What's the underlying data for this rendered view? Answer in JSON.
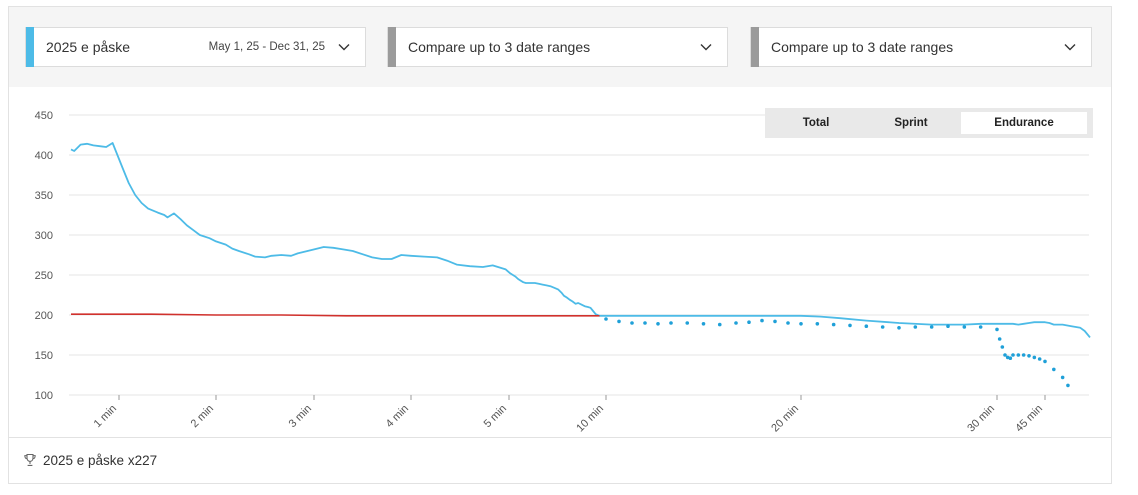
{
  "filters": [
    {
      "label": "2025 e påske",
      "range": "May 1, 25 - Dec 31, 25",
      "color": "#4dbbe7"
    },
    {
      "label": "Compare up to 3 date ranges",
      "range": "",
      "color": "#9b9b9b"
    },
    {
      "label": "Compare up to 3 date ranges",
      "range": "",
      "color": "#9b9b9b"
    }
  ],
  "toggle": {
    "options": [
      "Total",
      "Sprint",
      "Endurance"
    ],
    "selected": "Endurance"
  },
  "footer": {
    "text": "2025 e påske x227",
    "icon": "trophy-icon"
  },
  "chart_data": {
    "type": "line",
    "title": "",
    "xlabel": "",
    "ylabel": "",
    "ylim": [
      100,
      450
    ],
    "yticks": [
      100,
      150,
      200,
      250,
      300,
      350,
      400,
      450
    ],
    "x_scale": "piecewise-duration",
    "x_ticks": [
      {
        "label": "1 min",
        "seconds": 60
      },
      {
        "label": "2 min",
        "seconds": 120
      },
      {
        "label": "3 min",
        "seconds": 180
      },
      {
        "label": "4 min",
        "seconds": 240
      },
      {
        "label": "5 min",
        "seconds": 300
      },
      {
        "label": "10 min",
        "seconds": 600
      },
      {
        "label": "20 min",
        "seconds": 1200
      },
      {
        "label": "30 min",
        "seconds": 1800
      },
      {
        "label": "45 min",
        "seconds": 2700
      }
    ],
    "grid": true,
    "series": [
      {
        "color": "#4dbbe7",
        "style": "line",
        "points": [
          [
            30,
            407
          ],
          [
            32,
            405
          ],
          [
            36,
            413
          ],
          [
            40,
            414
          ],
          [
            44,
            412
          ],
          [
            48,
            411
          ],
          [
            52,
            410
          ],
          [
            56,
            415
          ],
          [
            58,
            405
          ],
          [
            62,
            385
          ],
          [
            66,
            365
          ],
          [
            70,
            350
          ],
          [
            74,
            340
          ],
          [
            78,
            333
          ],
          [
            84,
            328
          ],
          [
            88,
            325
          ],
          [
            90,
            322
          ],
          [
            94,
            327
          ],
          [
            98,
            320
          ],
          [
            102,
            312
          ],
          [
            106,
            306
          ],
          [
            110,
            300
          ],
          [
            116,
            296
          ],
          [
            120,
            292
          ],
          [
            126,
            288
          ],
          [
            130,
            283
          ],
          [
            134,
            280
          ],
          [
            140,
            276
          ],
          [
            144,
            273
          ],
          [
            150,
            272
          ],
          [
            154,
            274
          ],
          [
            160,
            275
          ],
          [
            166,
            274
          ],
          [
            170,
            277
          ],
          [
            176,
            280
          ],
          [
            182,
            283
          ],
          [
            186,
            285
          ],
          [
            192,
            284
          ],
          [
            198,
            282
          ],
          [
            204,
            280
          ],
          [
            210,
            276
          ],
          [
            216,
            272
          ],
          [
            222,
            270
          ],
          [
            228,
            270
          ],
          [
            234,
            275
          ],
          [
            240,
            274
          ],
          [
            248,
            273
          ],
          [
            256,
            272
          ],
          [
            262,
            268
          ],
          [
            268,
            263
          ],
          [
            276,
            261
          ],
          [
            284,
            260
          ],
          [
            290,
            262
          ],
          [
            298,
            257
          ],
          [
            304,
            252
          ],
          [
            312,
            250
          ],
          [
            320,
            248
          ],
          [
            328,
            245
          ],
          [
            336,
            243
          ],
          [
            344,
            241
          ],
          [
            352,
            240
          ],
          [
            360,
            240
          ],
          [
            370,
            240
          ],
          [
            380,
            240
          ],
          [
            392,
            239
          ],
          [
            404,
            238
          ],
          [
            416,
            237
          ],
          [
            428,
            236
          ],
          [
            440,
            234
          ],
          [
            452,
            232
          ],
          [
            462,
            228
          ],
          [
            470,
            224
          ],
          [
            478,
            222
          ],
          [
            488,
            219
          ],
          [
            496,
            217
          ],
          [
            506,
            214
          ],
          [
            514,
            215
          ],
          [
            524,
            213
          ],
          [
            534,
            211
          ],
          [
            544,
            210
          ],
          [
            552,
            209
          ],
          [
            560,
            205
          ],
          [
            568,
            201
          ],
          [
            580,
            199
          ],
          [
            620,
            199
          ],
          [
            700,
            199
          ],
          [
            800,
            199
          ],
          [
            900,
            199
          ],
          [
            1000,
            199
          ],
          [
            1100,
            199
          ],
          [
            1200,
            199
          ],
          [
            1260,
            198
          ],
          [
            1320,
            196
          ],
          [
            1400,
            193
          ],
          [
            1500,
            190
          ],
          [
            1600,
            188
          ],
          [
            1700,
            188
          ],
          [
            1750,
            189
          ],
          [
            1800,
            189
          ],
          [
            1950,
            189
          ],
          [
            2100,
            189
          ],
          [
            2200,
            188
          ],
          [
            2300,
            189
          ],
          [
            2400,
            190
          ],
          [
            2500,
            191
          ],
          [
            2600,
            191
          ],
          [
            2700,
            191
          ],
          [
            2750,
            190
          ],
          [
            2800,
            188
          ],
          [
            2900,
            188
          ],
          [
            3000,
            186
          ],
          [
            3100,
            184
          ],
          [
            3150,
            180
          ],
          [
            3210,
            172
          ]
        ]
      },
      {
        "color": "#d0312d",
        "style": "line",
        "points": [
          [
            30,
            201
          ],
          [
            80,
            201
          ],
          [
            120,
            200
          ],
          [
            160,
            200
          ],
          [
            200,
            199
          ],
          [
            300,
            199
          ],
          [
            400,
            199
          ],
          [
            500,
            199
          ],
          [
            580,
            199
          ]
        ]
      },
      {
        "color": "#1fa0d8",
        "style": "dots",
        "points": [
          [
            600,
            195
          ],
          [
            640,
            192
          ],
          [
            680,
            190
          ],
          [
            720,
            190
          ],
          [
            760,
            189
          ],
          [
            800,
            190
          ],
          [
            850,
            190
          ],
          [
            900,
            189
          ],
          [
            950,
            188
          ],
          [
            1000,
            190
          ],
          [
            1040,
            191
          ],
          [
            1080,
            193
          ],
          [
            1120,
            192
          ],
          [
            1160,
            190
          ],
          [
            1200,
            189
          ],
          [
            1250,
            189
          ],
          [
            1300,
            188
          ],
          [
            1350,
            187
          ],
          [
            1400,
            186
          ],
          [
            1450,
            185
          ],
          [
            1500,
            184
          ],
          [
            1550,
            185
          ],
          [
            1600,
            185
          ],
          [
            1650,
            186
          ],
          [
            1700,
            185
          ],
          [
            1750,
            185
          ],
          [
            1800,
            182
          ],
          [
            1850,
            170
          ],
          [
            1900,
            160
          ],
          [
            1950,
            150
          ],
          [
            2000,
            147
          ],
          [
            2050,
            146
          ],
          [
            2100,
            150
          ],
          [
            2200,
            150
          ],
          [
            2300,
            150
          ],
          [
            2400,
            149
          ],
          [
            2500,
            147
          ],
          [
            2600,
            145
          ],
          [
            2700,
            142
          ],
          [
            2800,
            132
          ],
          [
            2900,
            122
          ],
          [
            2960,
            112
          ]
        ]
      }
    ]
  }
}
